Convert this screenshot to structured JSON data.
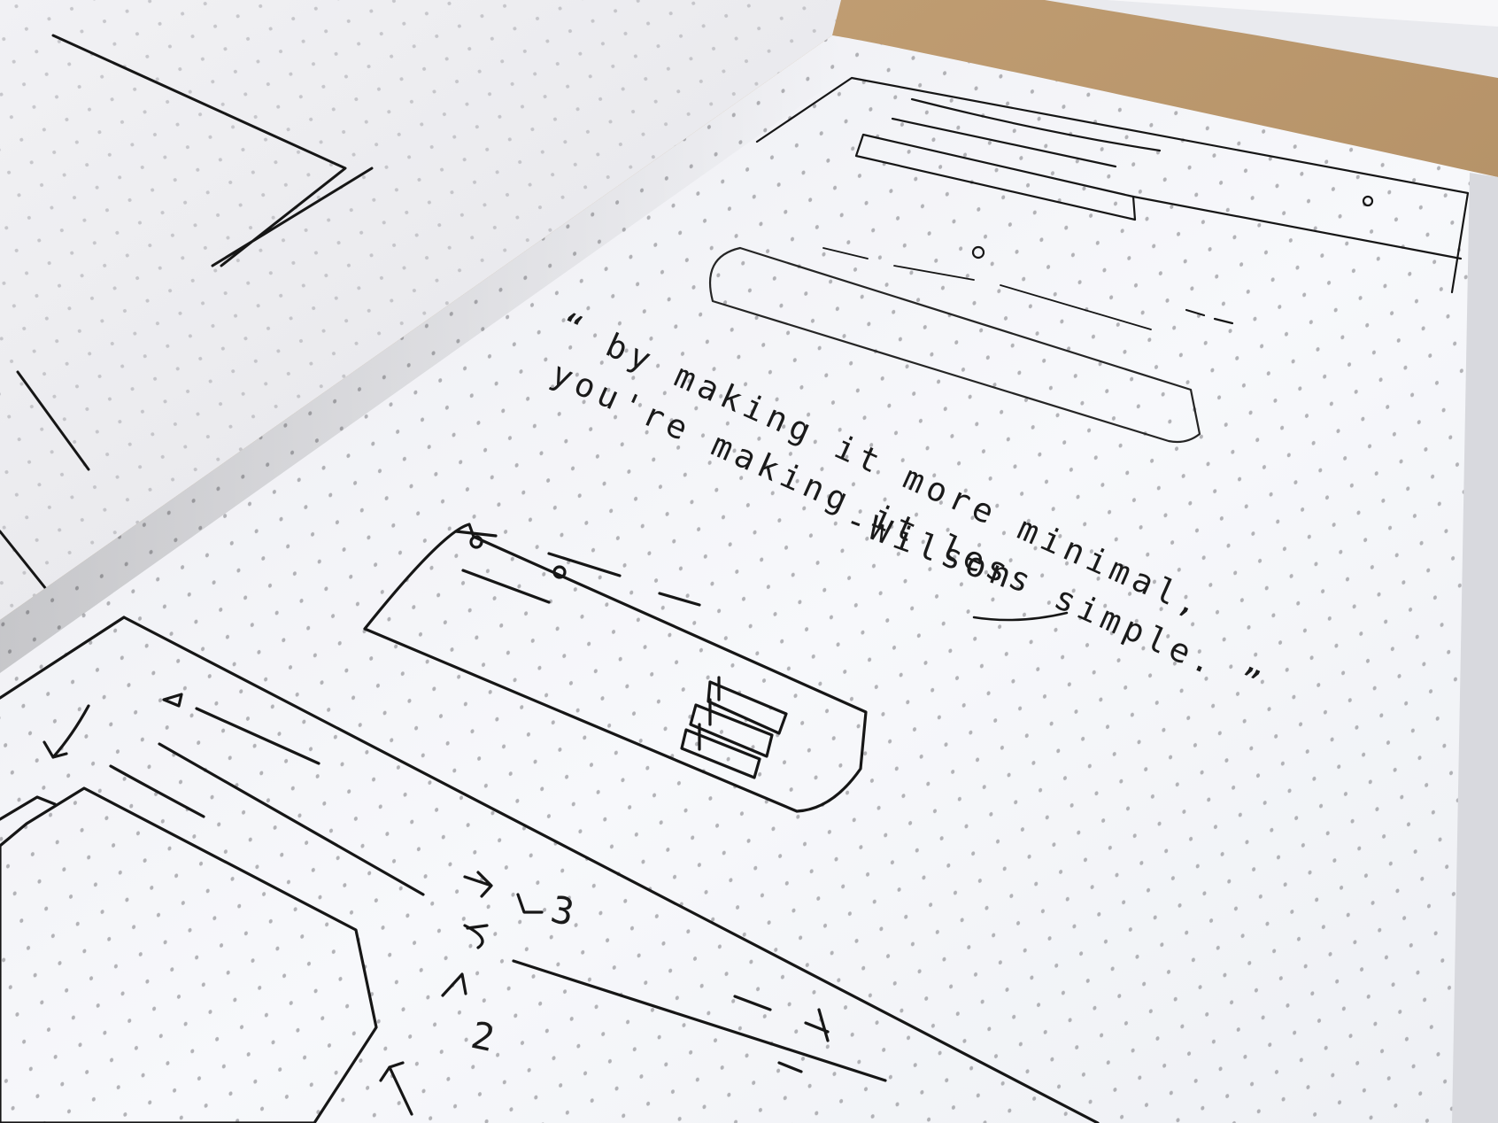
{
  "quote": {
    "line1": "“ by making it more minimal,",
    "line2": "you're making it less simple. ”",
    "author": "-Wilson"
  },
  "sketch_numbers": {
    "three": "3",
    "two": "2"
  },
  "colors": {
    "desk_wood": "#b89a74",
    "paper_right": "#f4f5f8",
    "paper_left": "#ececef",
    "ink": "#161616",
    "dots": "#8e8e92"
  }
}
